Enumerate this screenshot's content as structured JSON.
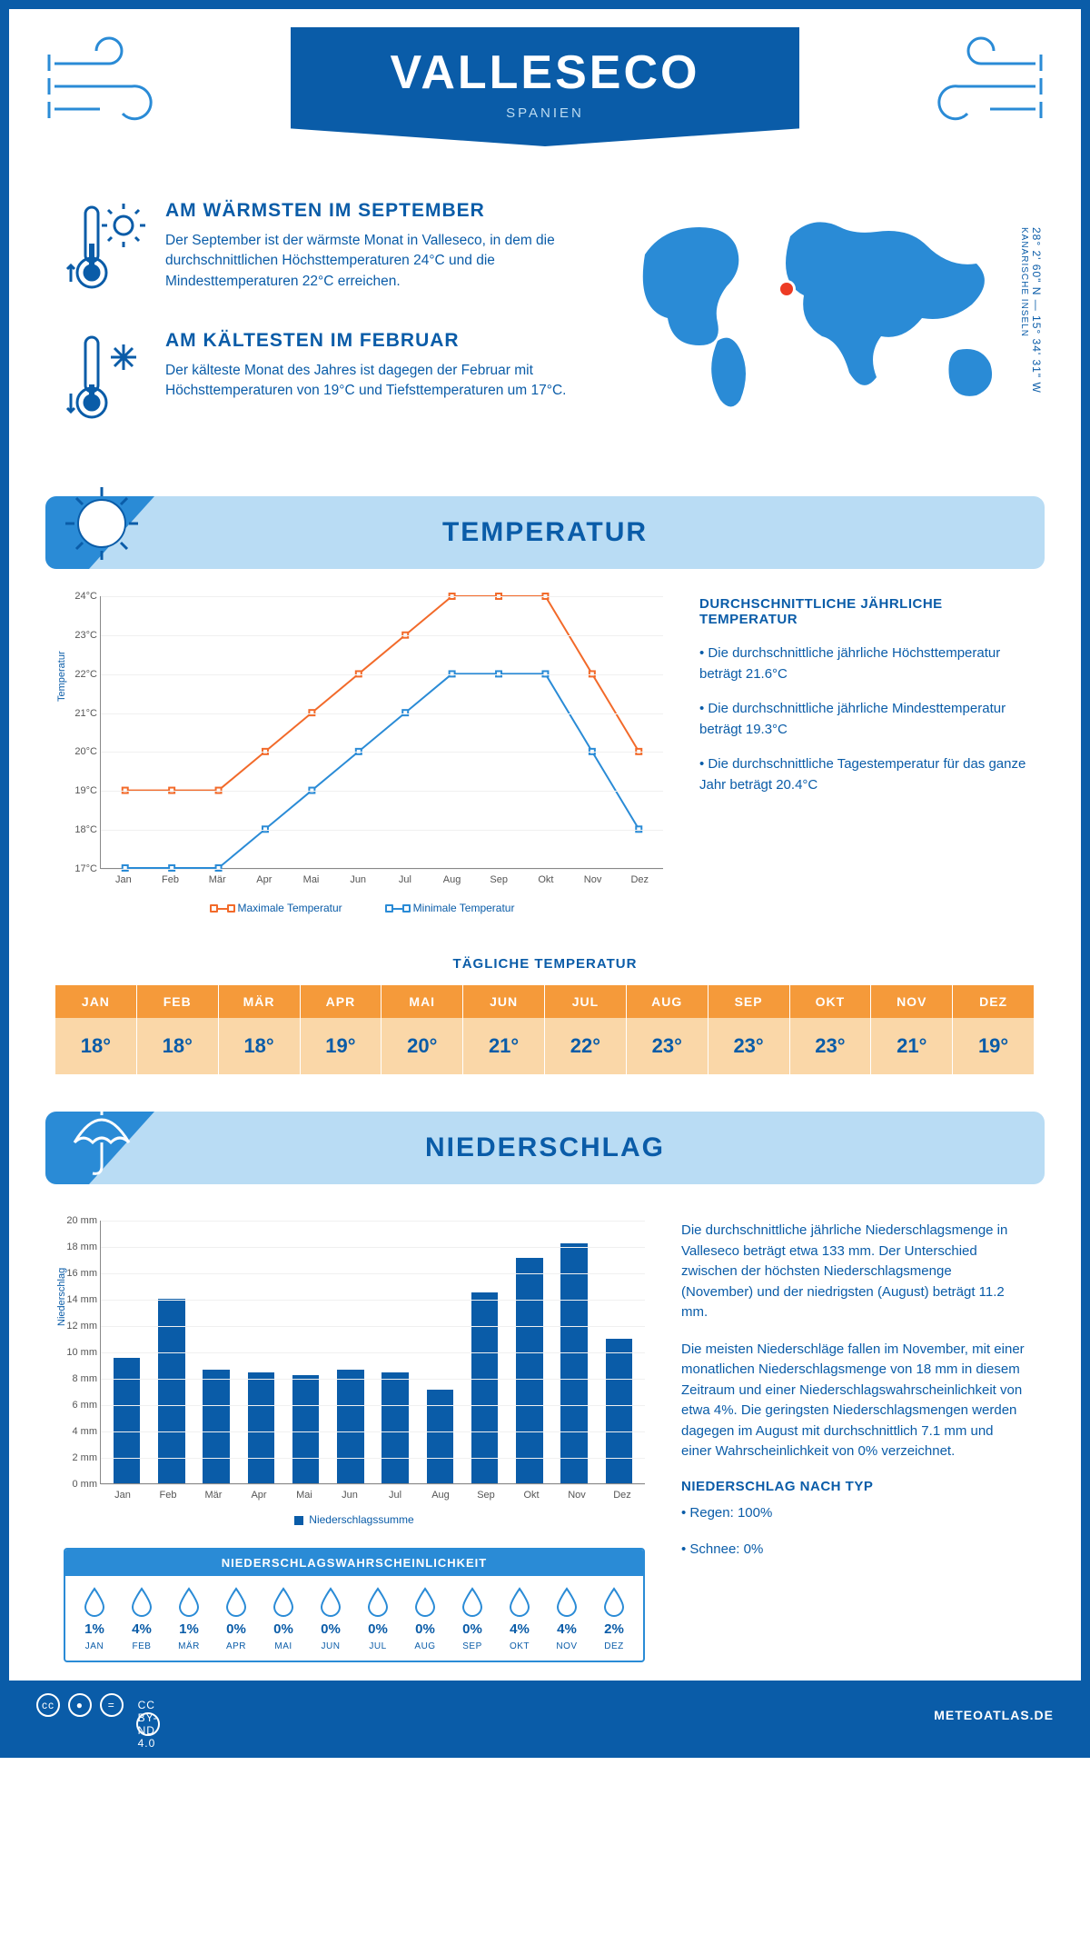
{
  "header": {
    "title": "VALLESECO",
    "subtitle": "SPANIEN"
  },
  "coords": {
    "line1": "28° 2' 60\" N — 15° 34' 31\" W",
    "line2": "KANARISCHE INSELN"
  },
  "facts": {
    "warm": {
      "title": "AM WÄRMSTEN IM SEPTEMBER",
      "text": "Der September ist der wärmste Monat in Valleseco, in dem die durchschnittlichen Höchsttemperaturen 24°C und die Mindesttemperaturen 22°C erreichen."
    },
    "cold": {
      "title": "AM KÄLTESTEN IM FEBRUAR",
      "text": "Der kälteste Monat des Jahres ist dagegen der Februar mit Höchsttemperaturen von 19°C und Tiefsttemperaturen um 17°C."
    }
  },
  "sections": {
    "temperature": "TEMPERATUR",
    "precipitation": "NIEDERSCHLAG"
  },
  "temp_chart": {
    "type": "line",
    "ylabel": "Temperatur",
    "months": [
      "Jan",
      "Feb",
      "Mär",
      "Apr",
      "Mai",
      "Jun",
      "Jul",
      "Aug",
      "Sep",
      "Okt",
      "Nov",
      "Dez"
    ],
    "yticks": [
      "17°C",
      "18°C",
      "19°C",
      "20°C",
      "21°C",
      "22°C",
      "23°C",
      "24°C"
    ],
    "ymin": 17,
    "ymax": 24,
    "max_series": [
      19,
      19,
      19,
      20,
      21,
      22,
      23,
      24,
      24,
      24,
      22,
      20
    ],
    "min_series": [
      17,
      17,
      17,
      18,
      19,
      20,
      21,
      22,
      22,
      22,
      20,
      18
    ],
    "color_max": "#f26a2a",
    "color_min": "#2a8bd6",
    "legend_max": "Maximale Temperatur",
    "legend_min": "Minimale Temperatur",
    "background_color": "#ffffff",
    "grid_color": "#f0f0f0",
    "line_width": 2,
    "marker": "square"
  },
  "temp_side": {
    "heading": "DURCHSCHNITTLICHE JÄHRLICHE TEMPERATUR",
    "b1": "• Die durchschnittliche jährliche Höchsttemperatur beträgt 21.6°C",
    "b2": "• Die durchschnittliche jährliche Mindesttemperatur beträgt 19.3°C",
    "b3": "• Die durchschnittliche Tagestemperatur für das ganze Jahr beträgt 20.4°C"
  },
  "daily": {
    "title": "TÄGLICHE TEMPERATUR",
    "months": [
      "JAN",
      "FEB",
      "MÄR",
      "APR",
      "MAI",
      "JUN",
      "JUL",
      "AUG",
      "SEP",
      "OKT",
      "NOV",
      "DEZ"
    ],
    "values": [
      "18°",
      "18°",
      "18°",
      "19°",
      "20°",
      "21°",
      "22°",
      "23°",
      "23°",
      "23°",
      "21°",
      "19°"
    ],
    "header_bg": "#f59a3a",
    "value_bg": "#fad7a8",
    "text_color": "#0a5ca8"
  },
  "precip_chart": {
    "type": "bar",
    "ylabel": "Niederschlag",
    "months": [
      "Jan",
      "Feb",
      "Mär",
      "Apr",
      "Mai",
      "Jun",
      "Jul",
      "Aug",
      "Sep",
      "Okt",
      "Nov",
      "Dez"
    ],
    "values": [
      9.5,
      14,
      8.6,
      8.4,
      8.2,
      8.6,
      8.4,
      7.1,
      14.5,
      17.1,
      18.2,
      11
    ],
    "ymin": 0,
    "ymax": 20,
    "ystep": 2,
    "yticks": [
      "0 mm",
      "2 mm",
      "4 mm",
      "6 mm",
      "8 mm",
      "10 mm",
      "12 mm",
      "14 mm",
      "16 mm",
      "18 mm",
      "20 mm"
    ],
    "bar_color": "#0a5ca8",
    "legend": "Niederschlagssumme"
  },
  "precip_side": {
    "p1": "Die durchschnittliche jährliche Niederschlagsmenge in Valleseco beträgt etwa 133 mm. Der Unterschied zwischen der höchsten Niederschlagsmenge (November) und der niedrigsten (August) beträgt 11.2 mm.",
    "p2": "Die meisten Niederschläge fallen im November, mit einer monatlichen Niederschlagsmenge von 18 mm in diesem Zeitraum und einer Niederschlagswahrscheinlichkeit von etwa 4%. Die geringsten Niederschlagsmengen werden dagegen im August mit durchschnittlich 7.1 mm und einer Wahrscheinlichkeit von 0% verzeichnet.",
    "h": "NIEDERSCHLAG NACH TYP",
    "b1": "• Regen: 100%",
    "b2": "• Schnee: 0%"
  },
  "prob": {
    "title": "NIEDERSCHLAGSWAHRSCHEINLICHKEIT",
    "months": [
      "JAN",
      "FEB",
      "MÄR",
      "APR",
      "MAI",
      "JUN",
      "JUL",
      "AUG",
      "SEP",
      "OKT",
      "NOV",
      "DEZ"
    ],
    "values": [
      "1%",
      "4%",
      "1%",
      "0%",
      "0%",
      "0%",
      "0%",
      "0%",
      "0%",
      "4%",
      "4%",
      "2%"
    ],
    "outline_color": "#2a8bd6"
  },
  "footer": {
    "license": "CC BY-ND 4.0",
    "brand": "METEOATLAS.DE"
  }
}
